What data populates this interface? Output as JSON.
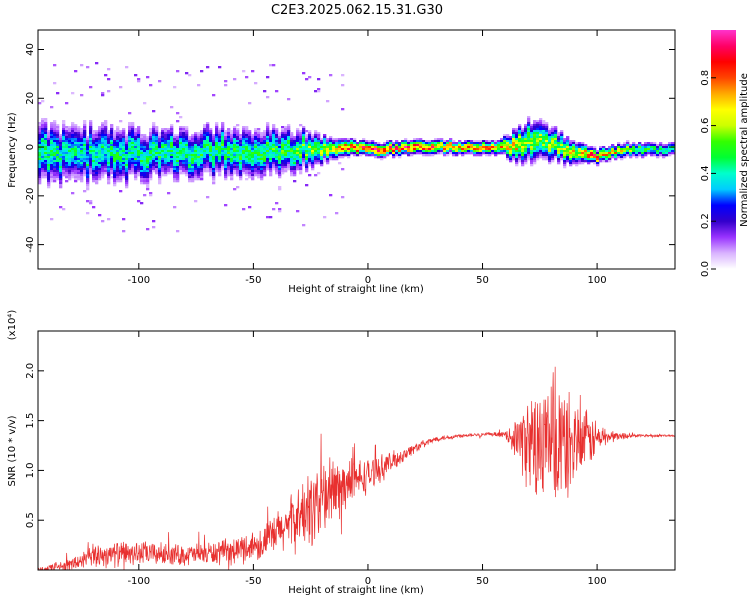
{
  "title": "C2E3.2025.062.15.31.G30",
  "chart_data": [
    {
      "type": "heatmap",
      "xlabel": "Height of straight line (km)",
      "ylabel": "Frequency (Hz)",
      "xlim": [
        -144,
        134
      ],
      "ylim": [
        -50,
        48
      ],
      "xticks": [
        -100,
        -50,
        0,
        50,
        100
      ],
      "yticks": [
        -40,
        -20,
        0,
        20,
        40
      ],
      "colorbar": {
        "label": "Normalized spectral amplitude",
        "range": [
          0.0,
          1.0
        ],
        "ticks": [
          0.0,
          0.2,
          0.4,
          0.6,
          0.8
        ],
        "tick_labels": [
          "0.0",
          "0.2",
          "0.4",
          "0.6",
          "0.8"
        ],
        "colormap": [
          "#ffffff",
          "#d9b3ff",
          "#9933ff",
          "#3300cc",
          "#0000ff",
          "#00ccff",
          "#00ffcc",
          "#00ff33",
          "#33ff00",
          "#ccff00",
          "#ffff00",
          "#ffaa00",
          "#ff4400",
          "#ff0000",
          "#ff0066",
          "#ff33cc"
        ]
      },
      "ridge": [
        {
          "x": -144,
          "y": -4,
          "spread": 9,
          "amp": 0.45
        },
        {
          "x": -130,
          "y": -3,
          "spread": 8,
          "amp": 0.4
        },
        {
          "x": -110,
          "y": -3,
          "spread": 8,
          "amp": 0.42
        },
        {
          "x": -90,
          "y": -3,
          "spread": 7,
          "amp": 0.45
        },
        {
          "x": -70,
          "y": -2,
          "spread": 7,
          "amp": 0.45
        },
        {
          "x": -50,
          "y": -2,
          "spread": 7,
          "amp": 0.45
        },
        {
          "x": -30,
          "y": -1,
          "spread": 6,
          "amp": 0.5
        },
        {
          "x": -15,
          "y": -1,
          "spread": 3,
          "amp": 0.6
        },
        {
          "x": -5,
          "y": 0,
          "spread": 2,
          "amp": 0.9
        },
        {
          "x": 5,
          "y": -1,
          "spread": 2,
          "amp": 0.85
        },
        {
          "x": 20,
          "y": 0,
          "spread": 2,
          "amp": 0.85
        },
        {
          "x": 40,
          "y": 0,
          "spread": 2,
          "amp": 0.7
        },
        {
          "x": 58,
          "y": 0,
          "spread": 2,
          "amp": 0.7
        },
        {
          "x": 65,
          "y": 1,
          "spread": 5,
          "amp": 0.65
        },
        {
          "x": 72,
          "y": 3,
          "spread": 6,
          "amp": 0.55
        },
        {
          "x": 80,
          "y": 1,
          "spread": 5,
          "amp": 0.55
        },
        {
          "x": 92,
          "y": -3,
          "spread": 3,
          "amp": 0.65
        },
        {
          "x": 100,
          "y": -4,
          "spread": 2,
          "amp": 0.8
        },
        {
          "x": 112,
          "y": -1,
          "spread": 2,
          "amp": 0.6
        },
        {
          "x": 125,
          "y": -1,
          "spread": 2,
          "amp": 0.45
        },
        {
          "x": 134,
          "y": -1,
          "spread": 2,
          "amp": 0.4
        }
      ]
    },
    {
      "type": "line",
      "xlabel": "Height of straight line (km)",
      "ylabel": "SNR (10 * v/v)",
      "ylabel_multiplier": "(x10⁴)",
      "xlim": [
        -144,
        134
      ],
      "ylim": [
        0,
        2.4
      ],
      "xticks": [
        -100,
        -50,
        0,
        50,
        100
      ],
      "yticks": [
        0.5,
        1.0,
        1.5,
        2.0
      ],
      "color": "#e8302f",
      "envelope": [
        {
          "x": -144,
          "base": 0.0,
          "amp": 0.03
        },
        {
          "x": -130,
          "base": 0.05,
          "amp": 0.08
        },
        {
          "x": -118,
          "base": 0.15,
          "amp": 0.15
        },
        {
          "x": -100,
          "base": 0.17,
          "amp": 0.14
        },
        {
          "x": -80,
          "base": 0.15,
          "amp": 0.12
        },
        {
          "x": -60,
          "base": 0.18,
          "amp": 0.15
        },
        {
          "x": -45,
          "base": 0.28,
          "amp": 0.2
        },
        {
          "x": -35,
          "base": 0.45,
          "amp": 0.3
        },
        {
          "x": -25,
          "base": 0.6,
          "amp": 0.45
        },
        {
          "x": -18,
          "base": 0.75,
          "amp": 0.5
        },
        {
          "x": -10,
          "base": 0.85,
          "amp": 0.3
        },
        {
          "x": 0,
          "base": 0.95,
          "amp": 0.2
        },
        {
          "x": 10,
          "base": 1.08,
          "amp": 0.12
        },
        {
          "x": 20,
          "base": 1.22,
          "amp": 0.06
        },
        {
          "x": 30,
          "base": 1.32,
          "amp": 0.03
        },
        {
          "x": 45,
          "base": 1.36,
          "amp": 0.02
        },
        {
          "x": 60,
          "base": 1.36,
          "amp": 0.03
        },
        {
          "x": 65,
          "base": 1.32,
          "amp": 0.25
        },
        {
          "x": 72,
          "base": 1.25,
          "amp": 0.65
        },
        {
          "x": 80,
          "base": 1.25,
          "amp": 0.85
        },
        {
          "x": 88,
          "base": 1.25,
          "amp": 0.6
        },
        {
          "x": 95,
          "base": 1.3,
          "amp": 0.35
        },
        {
          "x": 105,
          "base": 1.34,
          "amp": 0.08
        },
        {
          "x": 115,
          "base": 1.35,
          "amp": 0.02
        },
        {
          "x": 134,
          "base": 1.35,
          "amp": 0.01
        }
      ]
    }
  ]
}
